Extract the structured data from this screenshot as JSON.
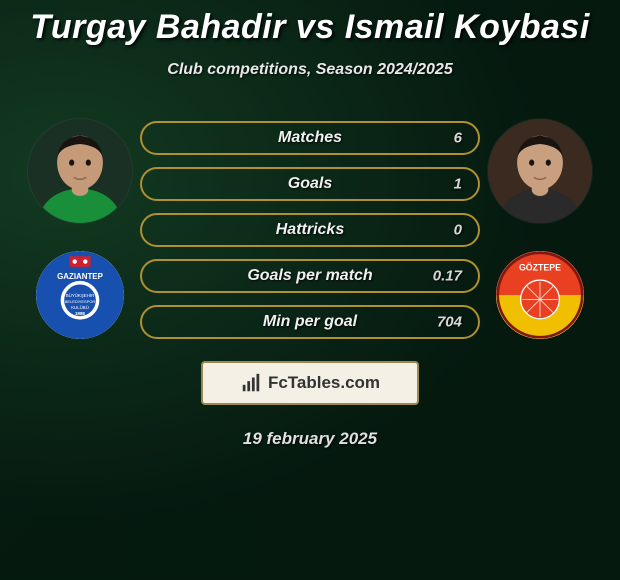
{
  "title": "Turgay Bahadir vs Ismail Koybasi",
  "subtitle": "Club competitions, Season 2024/2025",
  "date": "19 february 2025",
  "brand": "FcTables.com",
  "bar_border_color": "#b09030",
  "stats": [
    {
      "label": "Matches",
      "value": "6"
    },
    {
      "label": "Goals",
      "value": "1"
    },
    {
      "label": "Hattricks",
      "value": "0"
    },
    {
      "label": "Goals per match",
      "value": "0.17"
    },
    {
      "label": "Min per goal",
      "value": "704"
    }
  ],
  "player_left": {
    "avatar_bg": "#1a3025",
    "skin": "#c49a78",
    "shirt": "#1a8f3a"
  },
  "player_right": {
    "avatar_bg": "#3a2a20",
    "skin": "#c8a080",
    "shirt": "#2a2a2a"
  },
  "club_left": {
    "bg": "#1850b0",
    "accent": "#ffffff",
    "red": "#d02030",
    "text1": "GAZIANTEP"
  },
  "club_right": {
    "bg_top": "#e84020",
    "bg_bot": "#f0c000",
    "text": "GÖZTEPE"
  }
}
